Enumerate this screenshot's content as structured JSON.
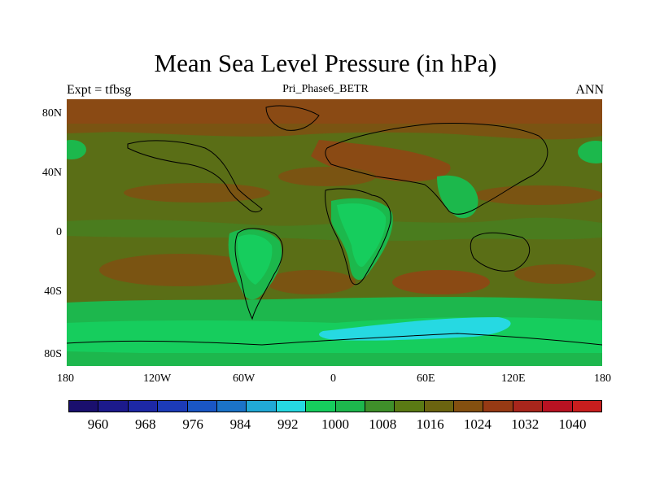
{
  "title": "Mean Sea Level Pressure (in hPa)",
  "left_label": "Expt = tfbsg",
  "center_label": "Pri_Phase6_BETR",
  "right_label": "ANN",
  "x_ticks": [
    "180",
    "120W",
    "60W",
    "0",
    "60E",
    "120E",
    "180"
  ],
  "y_ticks": [
    "80N",
    "40N",
    "0",
    "40S",
    "80S"
  ],
  "colorbar": {
    "colors": [
      "#1a0f6e",
      "#1c1a8c",
      "#1d28a5",
      "#1c3bb8",
      "#1a56c4",
      "#1b73c8",
      "#21a9d6",
      "#26d9e2",
      "#16cd5d",
      "#1db74d",
      "#3f8f2a",
      "#5a7a14",
      "#6b6410",
      "#845010",
      "#963a14",
      "#a8261c",
      "#b81222",
      "#c81e1e"
    ],
    "labels": [
      "960",
      "968",
      "976",
      "984",
      "992",
      "1000",
      "1008",
      "1016",
      "1024",
      "1032",
      "1040"
    ]
  }
}
